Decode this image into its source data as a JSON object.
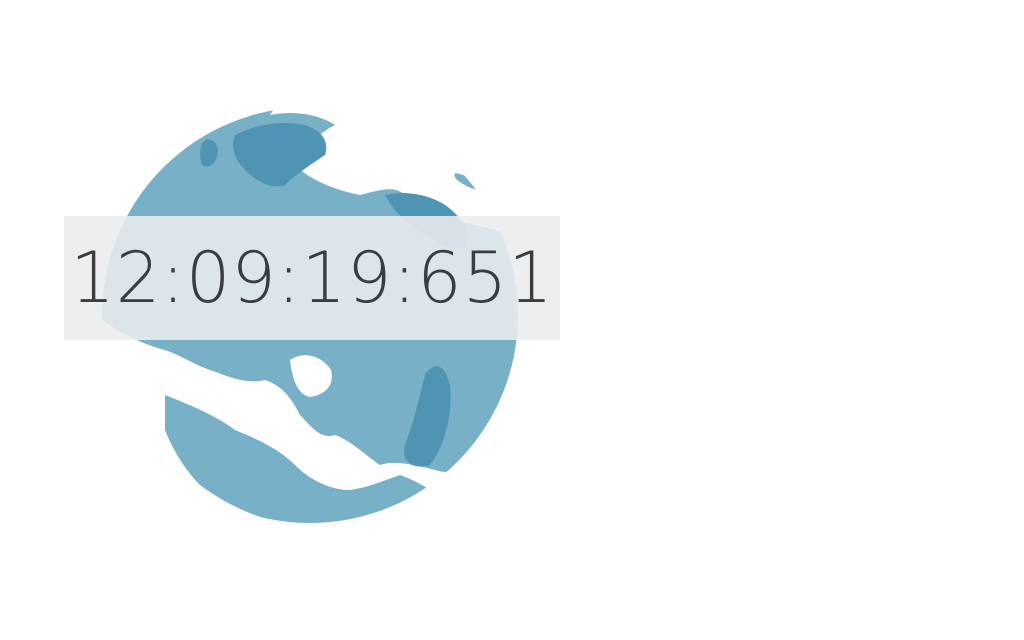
{
  "clock": {
    "time_text": "12:09:19:651"
  },
  "globe": {
    "icon": "globe-icon",
    "ocean_color": "#ffffff",
    "land_color": "#77b0c7",
    "land_dark_color": "#4f95b3"
  },
  "colors": {
    "background": "#ffffff",
    "panel": "#eaecee",
    "text": "#3a3d40"
  }
}
